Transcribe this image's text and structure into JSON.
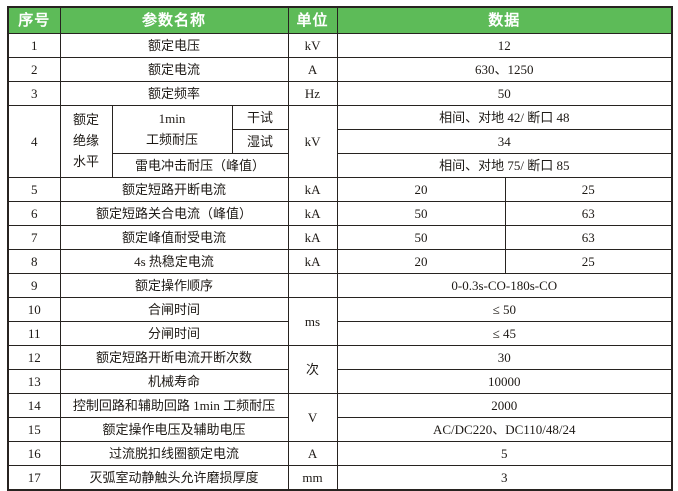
{
  "table": {
    "header_bg": "#5dbb58",
    "border_color": "#272320",
    "header": {
      "index": "序号",
      "name": "参数名称",
      "unit": "单位",
      "data": "数据"
    },
    "rows": [
      {
        "cells": [
          {
            "t": "1"
          },
          {
            "t": "额定电压",
            "cs": 3
          },
          {
            "t": "kV"
          },
          {
            "t": "12",
            "cs": 2
          }
        ]
      },
      {
        "cells": [
          {
            "t": "2"
          },
          {
            "t": "额定电流",
            "cs": 3
          },
          {
            "t": "A"
          },
          {
            "t": "630、1250",
            "cs": 2
          }
        ]
      },
      {
        "cells": [
          {
            "t": "3"
          },
          {
            "t": "额定频率",
            "cs": 3
          },
          {
            "t": "Hz"
          },
          {
            "t": "50",
            "cs": 2
          }
        ]
      },
      {
        "cells": [
          {
            "t": "4",
            "rs": 3
          },
          {
            "t": "额定\n绝缘\n水平",
            "rs": 3,
            "pre": true
          },
          {
            "t": "1min\n工频耐压",
            "rs": 2,
            "pre": true
          },
          {
            "t": "干试"
          },
          {
            "t": "kV",
            "rs": 3
          },
          {
            "t": "相间、对地 42/ 断口 48",
            "cs": 2
          }
        ]
      },
      {
        "cells": [
          {
            "t": "湿试"
          },
          {
            "t": "34",
            "cs": 2
          }
        ]
      },
      {
        "cells": [
          {
            "t": "雷电冲击耐压（峰值）",
            "cs": 2
          },
          {
            "t": "相间、对地 75/ 断口 85",
            "cs": 2
          }
        ]
      },
      {
        "cells": [
          {
            "t": "5"
          },
          {
            "t": "额定短路开断电流",
            "cs": 3
          },
          {
            "t": "kA"
          },
          {
            "t": "20"
          },
          {
            "t": "25"
          }
        ]
      },
      {
        "cells": [
          {
            "t": "6"
          },
          {
            "t": "额定短路关合电流（峰值）",
            "cs": 3
          },
          {
            "t": "kA"
          },
          {
            "t": "50"
          },
          {
            "t": "63"
          }
        ]
      },
      {
        "cells": [
          {
            "t": "7"
          },
          {
            "t": "额定峰值耐受电流",
            "cs": 3
          },
          {
            "t": "kA"
          },
          {
            "t": "50"
          },
          {
            "t": "63"
          }
        ]
      },
      {
        "cells": [
          {
            "t": "8"
          },
          {
            "t": "4s 热稳定电流",
            "cs": 3
          },
          {
            "t": "kA"
          },
          {
            "t": "20"
          },
          {
            "t": "25"
          }
        ]
      },
      {
        "cells": [
          {
            "t": "9"
          },
          {
            "t": "额定操作顺序",
            "cs": 3
          },
          {
            "t": ""
          },
          {
            "t": "0-0.3s-CO-180s-CO",
            "cs": 2
          }
        ]
      },
      {
        "cells": [
          {
            "t": "10"
          },
          {
            "t": "合闸时间",
            "cs": 3
          },
          {
            "t": "ms",
            "rs": 2
          },
          {
            "t": "≤ 50",
            "cs": 2
          }
        ]
      },
      {
        "cells": [
          {
            "t": "11"
          },
          {
            "t": "分闸时间",
            "cs": 3
          },
          {
            "t": "≤ 45",
            "cs": 2
          }
        ]
      },
      {
        "cells": [
          {
            "t": "12"
          },
          {
            "t": "额定短路开断电流开断次数",
            "cs": 3
          },
          {
            "t": "次",
            "rs": 2
          },
          {
            "t": "30",
            "cs": 2
          }
        ]
      },
      {
        "cells": [
          {
            "t": "13"
          },
          {
            "t": "机械寿命",
            "cs": 3
          },
          {
            "t": "10000",
            "cs": 2
          }
        ]
      },
      {
        "cells": [
          {
            "t": "14"
          },
          {
            "t": "控制回路和辅助回路 1min 工频耐压",
            "cs": 3
          },
          {
            "t": "V",
            "rs": 2
          },
          {
            "t": "2000",
            "cs": 2
          }
        ]
      },
      {
        "cells": [
          {
            "t": "15"
          },
          {
            "t": "额定操作电压及辅助电压",
            "cs": 3
          },
          {
            "t": "AC/DC220、DC110/48/24",
            "cs": 2
          }
        ]
      },
      {
        "cells": [
          {
            "t": "16"
          },
          {
            "t": "过流脱扣线圈额定电流",
            "cs": 3
          },
          {
            "t": "A"
          },
          {
            "t": "5",
            "cs": 2
          }
        ]
      },
      {
        "cells": [
          {
            "t": "17"
          },
          {
            "t": "灭弧室动静触头允许磨损厚度",
            "cs": 3
          },
          {
            "t": "mm"
          },
          {
            "t": "3",
            "cs": 2
          }
        ]
      }
    ]
  }
}
